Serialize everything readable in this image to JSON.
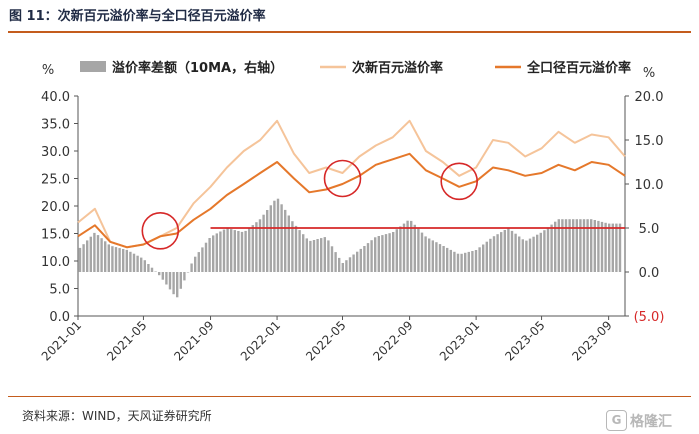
{
  "header": {
    "title": "图 11：次新百元溢价率与全口径百元溢价率"
  },
  "footer": {
    "source": "资料来源：WIND，天风证券研究所",
    "watermark": "格隆汇",
    "watermark_mark": "G"
  },
  "chart_data": {
    "type": "bar+line",
    "title": "",
    "y_unit_left": "%",
    "y_unit_right": "%",
    "left_axis": {
      "ticks": [
        "0.0",
        "5.0",
        "10.0",
        "15.0",
        "20.0",
        "25.0",
        "30.0",
        "35.0",
        "40.0"
      ],
      "range": [
        0,
        40
      ]
    },
    "right_axis": {
      "ticks": [
        "(5.0)",
        "0.0",
        "5.0",
        "10.0",
        "15.0",
        "20.0"
      ],
      "range": [
        -5,
        20
      ],
      "negative_tick_color": "#d62828"
    },
    "x_ticks": [
      "2021-01",
      "2021-05",
      "2021-09",
      "2022-01",
      "2022-05",
      "2022-09",
      "2023-01",
      "2023-05",
      "2023-09"
    ],
    "legend": [
      {
        "name": "溢价率差额（10MA，右轴）",
        "kind": "bar",
        "color": "#a6a6a6"
      },
      {
        "name": "次新百元溢价率",
        "kind": "line",
        "color": "#f5c49a"
      },
      {
        "name": "全口径百元溢价率",
        "kind": "line",
        "color": "#e5782b"
      }
    ],
    "reference_line": {
      "axis": "right",
      "value": 5.0,
      "color": "#d62828"
    },
    "highlight_circles": [
      {
        "date": "2021-06",
        "left_value": 15.5
      },
      {
        "date": "2022-05",
        "left_value": 25.0
      },
      {
        "date": "2022-12",
        "left_value": 24.5
      }
    ],
    "series": [
      {
        "name": "次新百元溢价率",
        "axis": "left",
        "color": "#f5c49a",
        "x": [
          "2021-01",
          "2021-02",
          "2021-03",
          "2021-04",
          "2021-05",
          "2021-06",
          "2021-07",
          "2021-08",
          "2021-09",
          "2021-10",
          "2021-11",
          "2021-12",
          "2022-01",
          "2022-02",
          "2022-03",
          "2022-04",
          "2022-05",
          "2022-06",
          "2022-07",
          "2022-08",
          "2022-09",
          "2022-10",
          "2022-11",
          "2022-12",
          "2023-01",
          "2023-02",
          "2023-03",
          "2023-04",
          "2023-05",
          "2023-06",
          "2023-07",
          "2023-08",
          "2023-09",
          "2023-10"
        ],
        "values": [
          17.0,
          19.5,
          13.5,
          12.5,
          13.0,
          14.5,
          16.0,
          20.5,
          23.5,
          27.0,
          30.0,
          32.0,
          35.5,
          29.5,
          26.0,
          27.0,
          26.0,
          29.0,
          31.0,
          32.5,
          35.5,
          30.0,
          28.0,
          25.5,
          27.0,
          32.0,
          31.5,
          29.0,
          30.5,
          33.5,
          31.5,
          33.0,
          32.5,
          29.0
        ]
      },
      {
        "name": "全口径百元溢价率",
        "axis": "left",
        "color": "#e5782b",
        "x": [
          "2021-01",
          "2021-02",
          "2021-03",
          "2021-04",
          "2021-05",
          "2021-06",
          "2021-07",
          "2021-08",
          "2021-09",
          "2021-10",
          "2021-11",
          "2021-12",
          "2022-01",
          "2022-02",
          "2022-03",
          "2022-04",
          "2022-05",
          "2022-06",
          "2022-07",
          "2022-08",
          "2022-09",
          "2022-10",
          "2022-11",
          "2022-12",
          "2023-01",
          "2023-02",
          "2023-03",
          "2023-04",
          "2023-05",
          "2023-06",
          "2023-07",
          "2023-08",
          "2023-09",
          "2023-10"
        ],
        "values": [
          14.5,
          16.5,
          13.5,
          12.5,
          13.0,
          14.5,
          15.0,
          17.5,
          19.5,
          22.0,
          24.0,
          26.0,
          28.0,
          25.0,
          22.5,
          23.0,
          24.0,
          25.5,
          27.5,
          28.5,
          29.5,
          26.5,
          25.0,
          23.5,
          24.5,
          27.0,
          26.5,
          25.5,
          26.0,
          27.5,
          26.5,
          28.0,
          27.5,
          25.5
        ]
      },
      {
        "name": "溢价率差额（10MA，右轴）",
        "axis": "right",
        "color": "#a6a6a6",
        "type": "bar",
        "x": [
          "2021-01",
          "2021-02",
          "2021-03",
          "2021-04",
          "2021-05",
          "2021-06",
          "2021-07",
          "2021-08",
          "2021-09",
          "2021-10",
          "2021-11",
          "2021-12",
          "2022-01",
          "2022-02",
          "2022-03",
          "2022-04",
          "2022-05",
          "2022-06",
          "2022-07",
          "2022-08",
          "2022-09",
          "2022-10",
          "2022-11",
          "2022-12",
          "2023-01",
          "2023-02",
          "2023-03",
          "2023-04",
          "2023-05",
          "2023-06",
          "2023-07",
          "2023-08",
          "2023-09",
          "2023-10"
        ],
        "values": [
          2.5,
          4.5,
          3.0,
          2.5,
          1.5,
          -0.5,
          -3.0,
          1.5,
          4.0,
          5.0,
          4.5,
          6.0,
          8.5,
          5.5,
          3.5,
          4.0,
          1.0,
          2.5,
          4.0,
          4.5,
          6.0,
          4.0,
          3.0,
          2.0,
          2.5,
          4.0,
          5.0,
          3.5,
          4.5,
          6.0,
          6.0,
          6.0,
          5.5,
          5.5
        ]
      }
    ]
  }
}
